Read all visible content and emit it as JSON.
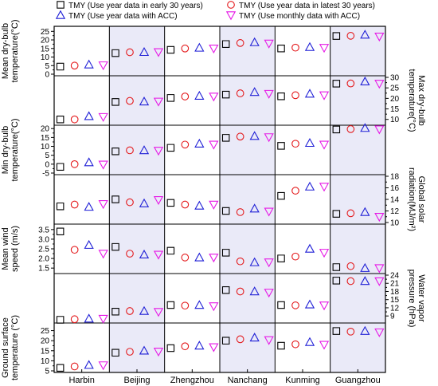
{
  "chart_data": {
    "type": "scatter",
    "legend": {
      "placement": "top",
      "entries": [
        {
          "key": "tmy_early30",
          "label": "TMY (Use year data in early 30 years)",
          "marker": "square",
          "color": "#000000"
        },
        {
          "key": "tmy_latest30",
          "label": "TMY (Use year data in latest 30 years)",
          "marker": "circle",
          "color": "#e41a1c"
        },
        {
          "key": "tmy_acc",
          "label": "TMY (Use year data with ACC)",
          "marker": "triangle-up",
          "color": "#1f1fd6"
        },
        {
          "key": "tmy_monthly_acc",
          "label": "TMY (Use monthly data with ACC)",
          "marker": "triangle-down",
          "color": "#e619e6"
        }
      ]
    },
    "cities": [
      "Harbin",
      "Beijing",
      "Zhengzhou",
      "Nanchang",
      "Kunming",
      "Guangzhou"
    ],
    "shaded_columns": [
      1,
      3,
      5
    ],
    "panels": [
      {
        "ylabel": [
          "Mean dry-bulb",
          "temperature(°C)"
        ],
        "axis_side": "left",
        "ylim": [
          0,
          27
        ],
        "ticks": [
          0,
          5,
          10,
          15,
          20,
          25
        ],
        "tick_labels": [
          "0",
          "5",
          "10",
          "15",
          "20",
          "25"
        ],
        "values": {
          "tmy_early30": [
            4.4,
            12.3,
            14.2,
            17.6,
            15.0,
            22.3
          ],
          "tmy_latest30": [
            5.0,
            12.8,
            15.0,
            18.2,
            15.5,
            22.4
          ],
          "tmy_acc": [
            5.6,
            12.9,
            15.4,
            18.6,
            15.8,
            23.0
          ],
          "tmy_monthly_acc": [
            5.2,
            12.9,
            15.0,
            17.9,
            15.4,
            22.0
          ]
        }
      },
      {
        "ylabel": [
          "Max dry-bulb",
          "temperature(°C)"
        ],
        "axis_side": "right",
        "ylim": [
          8,
          30
        ],
        "ticks": [
          10,
          15,
          20,
          25,
          30
        ],
        "tick_labels": [
          "10",
          "15",
          "20",
          "25",
          "30"
        ],
        "values": {
          "tmy_early30": [
            10.0,
            18.3,
            20.2,
            21.8,
            21.0,
            27.0
          ],
          "tmy_latest30": [
            10.0,
            18.8,
            20.9,
            22.4,
            21.5,
            27.1
          ],
          "tmy_acc": [
            11.5,
            18.5,
            21.2,
            23.0,
            22.2,
            28.0
          ],
          "tmy_monthly_acc": [
            11.2,
            18.5,
            20.9,
            22.2,
            21.5,
            27.0
          ]
        }
      },
      {
        "ylabel": [
          "Min dry-bulb",
          "temperature(°C)"
        ],
        "axis_side": "left",
        "ylim": [
          -5,
          21
        ],
        "ticks": [
          -5,
          0,
          5,
          10,
          15,
          20
        ],
        "tick_labels": [
          "-5",
          "0",
          "5",
          "10",
          "15",
          "20"
        ],
        "values": {
          "tmy_early30": [
            -1.5,
            7.2,
            9.2,
            14.8,
            10.3,
            19.5
          ],
          "tmy_latest30": [
            0.0,
            7.8,
            11.0,
            15.5,
            11.5,
            19.7
          ],
          "tmy_acc": [
            1.0,
            7.8,
            11.5,
            15.8,
            11.9,
            20.3
          ],
          "tmy_monthly_acc": [
            -0.2,
            7.6,
            11.0,
            15.2,
            11.0,
            19.6
          ]
        }
      },
      {
        "ylabel": [
          "Global solar",
          "radiation(MJ/m²)"
        ],
        "axis_side": "right",
        "ylim": [
          10,
          18
        ],
        "ticks": [
          10,
          12,
          14,
          16,
          18
        ],
        "tick_labels": [
          "10",
          "12",
          "14",
          "16",
          "18"
        ],
        "values": {
          "tmy_early30": [
            12.8,
            14.0,
            13.4,
            12.0,
            14.6,
            11.5
          ],
          "tmy_latest30": [
            13.1,
            13.5,
            13.1,
            11.8,
            15.5,
            11.6
          ],
          "tmy_acc": [
            12.7,
            13.3,
            12.9,
            12.4,
            16.2,
            11.8
          ],
          "tmy_monthly_acc": [
            13.2,
            13.9,
            13.1,
            11.9,
            16.2,
            11.0
          ]
        }
      },
      {
        "ylabel": [
          "Mean wind",
          "speed (m/s)"
        ],
        "axis_side": "left",
        "ylim": [
          1.3,
          3.7
        ],
        "ticks": [
          1.5,
          2.0,
          2.5,
          3.0,
          3.5
        ],
        "tick_labels": [
          "1.5",
          "2.0",
          "2.5",
          "3.0",
          "3.5"
        ],
        "values": {
          "tmy_early30": [
            3.4,
            2.6,
            2.4,
            2.3,
            2.0,
            1.55
          ],
          "tmy_latest30": [
            2.45,
            2.25,
            2.05,
            1.85,
            2.1,
            1.6
          ],
          "tmy_acc": [
            2.7,
            2.2,
            2.05,
            1.8,
            2.5,
            1.5
          ],
          "tmy_monthly_acc": [
            2.25,
            2.2,
            2.05,
            1.8,
            2.3,
            1.5
          ]
        }
      },
      {
        "ylabel": [
          "Water vapor",
          "pressure (hPa)"
        ],
        "axis_side": "right",
        "ylim": [
          7,
          24
        ],
        "ticks": [
          9,
          12,
          15,
          18,
          21,
          24
        ],
        "tick_labels": [
          "9",
          "12",
          "15",
          "18",
          "21",
          "24"
        ],
        "values": {
          "tmy_early30": [
            7.6,
            10.6,
            13.0,
            18.5,
            13.0,
            22.0
          ],
          "tmy_latest30": [
            7.8,
            10.8,
            12.8,
            18.0,
            12.9,
            21.8
          ],
          "tmy_acc": [
            8.0,
            10.8,
            13.0,
            18.0,
            13.2,
            21.8
          ],
          "tmy_monthly_acc": [
            8.0,
            10.5,
            12.6,
            17.6,
            12.9,
            21.8
          ]
        }
      },
      {
        "ylabel": [
          "Ground surface",
          "temperature (°C)"
        ],
        "axis_side": "left",
        "ylim": [
          5,
          28
        ],
        "ticks": [
          5,
          10,
          15,
          20,
          25
        ],
        "tick_labels": [
          "5",
          "10",
          "15",
          "20",
          "25"
        ],
        "values": {
          "tmy_early30": [
            6.5,
            14.0,
            16.3,
            20.0,
            17.5,
            24.8
          ],
          "tmy_latest30": [
            7.2,
            14.5,
            17.2,
            20.7,
            18.2,
            24.5
          ],
          "tmy_acc": [
            7.9,
            15.0,
            17.5,
            21.5,
            19.3,
            24.8
          ],
          "tmy_monthly_acc": [
            7.8,
            14.6,
            16.8,
            20.3,
            18.0,
            24.2
          ]
        }
      }
    ]
  }
}
